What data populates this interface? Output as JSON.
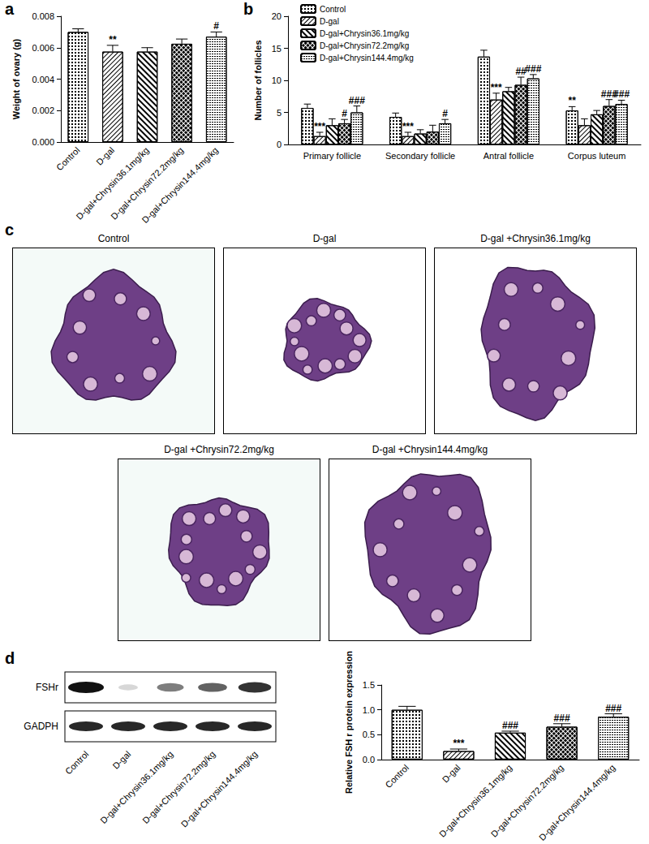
{
  "chart_data": [
    {
      "panel": "a",
      "type": "bar",
      "y_label": "Weight of ovary (g)",
      "categories": [
        "Control",
        "D-gal",
        "D-gal+Chrysin36.1mg/kg",
        "D-gal+Chrysin72.2mg/kg",
        "D-gal+Chrysin144.4mg/kg"
      ],
      "values": [
        0.007,
        0.00575,
        0.00575,
        0.00625,
        0.0067
      ],
      "errors": [
        0.0002,
        0.0004,
        0.00025,
        0.0003,
        0.0003
      ],
      "significance": [
        null,
        "**",
        null,
        null,
        "#"
      ],
      "colors": [
        "#ffffff",
        "#ffffff",
        "#ffffff",
        "#ffffff",
        "#ffffff"
      ],
      "ylim": [
        0,
        0.008
      ],
      "yticks": [
        {
          "value": 0,
          "label": "0.000"
        },
        {
          "value": 0.002,
          "label": "0.002"
        },
        {
          "value": 0.004,
          "label": "0.004"
        },
        {
          "value": 0.006,
          "label": "0.006"
        },
        {
          "value": 0.008,
          "label": "0.008"
        }
      ],
      "grid": false
    },
    {
      "panel": "b",
      "type": "bar",
      "y_label": "Number of follicles",
      "categories": [
        "Primary follicle",
        "Secondary follicle",
        "Antral follicle",
        "Corpus luteum"
      ],
      "series": [
        {
          "name": "Control",
          "color": "#ffffff",
          "values": [
            5.7,
            4.3,
            13.7,
            5.3
          ],
          "errors": [
            0.6,
            0.6,
            1.0,
            0.6
          ],
          "significance": [
            null,
            null,
            null,
            "**"
          ]
        },
        {
          "name": "D-gal",
          "color": "#ffffff",
          "values": [
            1.3,
            1.3,
            7.0,
            3.0
          ],
          "errors": [
            0.6,
            0.6,
            1.0,
            1.0
          ],
          "significance": [
            "***",
            "***",
            "***",
            null
          ]
        },
        {
          "name": "D-gal+Chrysin36.1mg/kg",
          "color": "#ffffff",
          "values": [
            3.0,
            1.7,
            8.3,
            4.7
          ],
          "errors": [
            1.0,
            0.6,
            0.6,
            0.6
          ],
          "significance": [
            null,
            null,
            null,
            null
          ]
        },
        {
          "name": "D-gal+Chrysin72.2mg/kg",
          "color": "#ffffff",
          "values": [
            3.3,
            2.0,
            9.3,
            6.0
          ],
          "errors": [
            0.6,
            1.0,
            1.2,
            1.0
          ],
          "significance": [
            "#",
            null,
            "##",
            "###"
          ]
        },
        {
          "name": "D-gal+Chrysin144.4mg/kg",
          "color": "#ffffff",
          "values": [
            5.0,
            3.3,
            10.3,
            6.3
          ],
          "errors": [
            1.0,
            0.6,
            0.6,
            0.6
          ],
          "significance": [
            "###",
            "#",
            "###",
            "###"
          ]
        }
      ],
      "ylim": [
        0,
        20
      ],
      "yticks": [
        0,
        5,
        10,
        15,
        20
      ],
      "legend": "upper left",
      "grid": false
    },
    {
      "type": "bar",
      "y_label": "Relative FSH r protein expression",
      "categories": [
        "Control",
        "D-gal",
        "D-gal+Chrysin36.1mg/kg",
        "D-gal+Chrysin72.2mg/kg",
        "D-gal+Chrysin144.4mg/kg"
      ],
      "values": [
        1.0,
        0.17,
        0.54,
        0.66,
        0.86
      ],
      "errors": [
        0.07,
        0.04,
        0.03,
        0.06,
        0.06
      ],
      "significance": [
        null,
        "***",
        "###",
        "###",
        "###"
      ],
      "colors": [
        "#ffffff",
        "#ffffff",
        "#ffffff",
        "#ffffff",
        "#ffffff"
      ],
      "ylim": [
        0,
        1.5
      ],
      "yticks": [
        {
          "value": 0,
          "label": "0.0"
        },
        0.5,
        {
          "value": 1,
          "label": "1.0"
        },
        1.5
      ],
      "grid": false
    }
  ],
  "histology": {
    "panel": "c",
    "images": [
      "Control",
      "D-gal",
      "D-gal +Chrysin36.1mg/kg",
      "D-gal +Chrysin72.2mg/kg",
      "D-gal +Chrysin144.4mg/kg"
    ]
  },
  "western_blot": {
    "panel": "d",
    "rows": [
      "FSHr",
      "GADPH"
    ],
    "lanes": [
      "Control",
      "D-gal",
      "D-gal+Chrysin36.1mg/kg",
      "D-gal+Chrysin72.2mg/kg",
      "D-gal+Chrysin144.4mg/kg"
    ]
  }
}
